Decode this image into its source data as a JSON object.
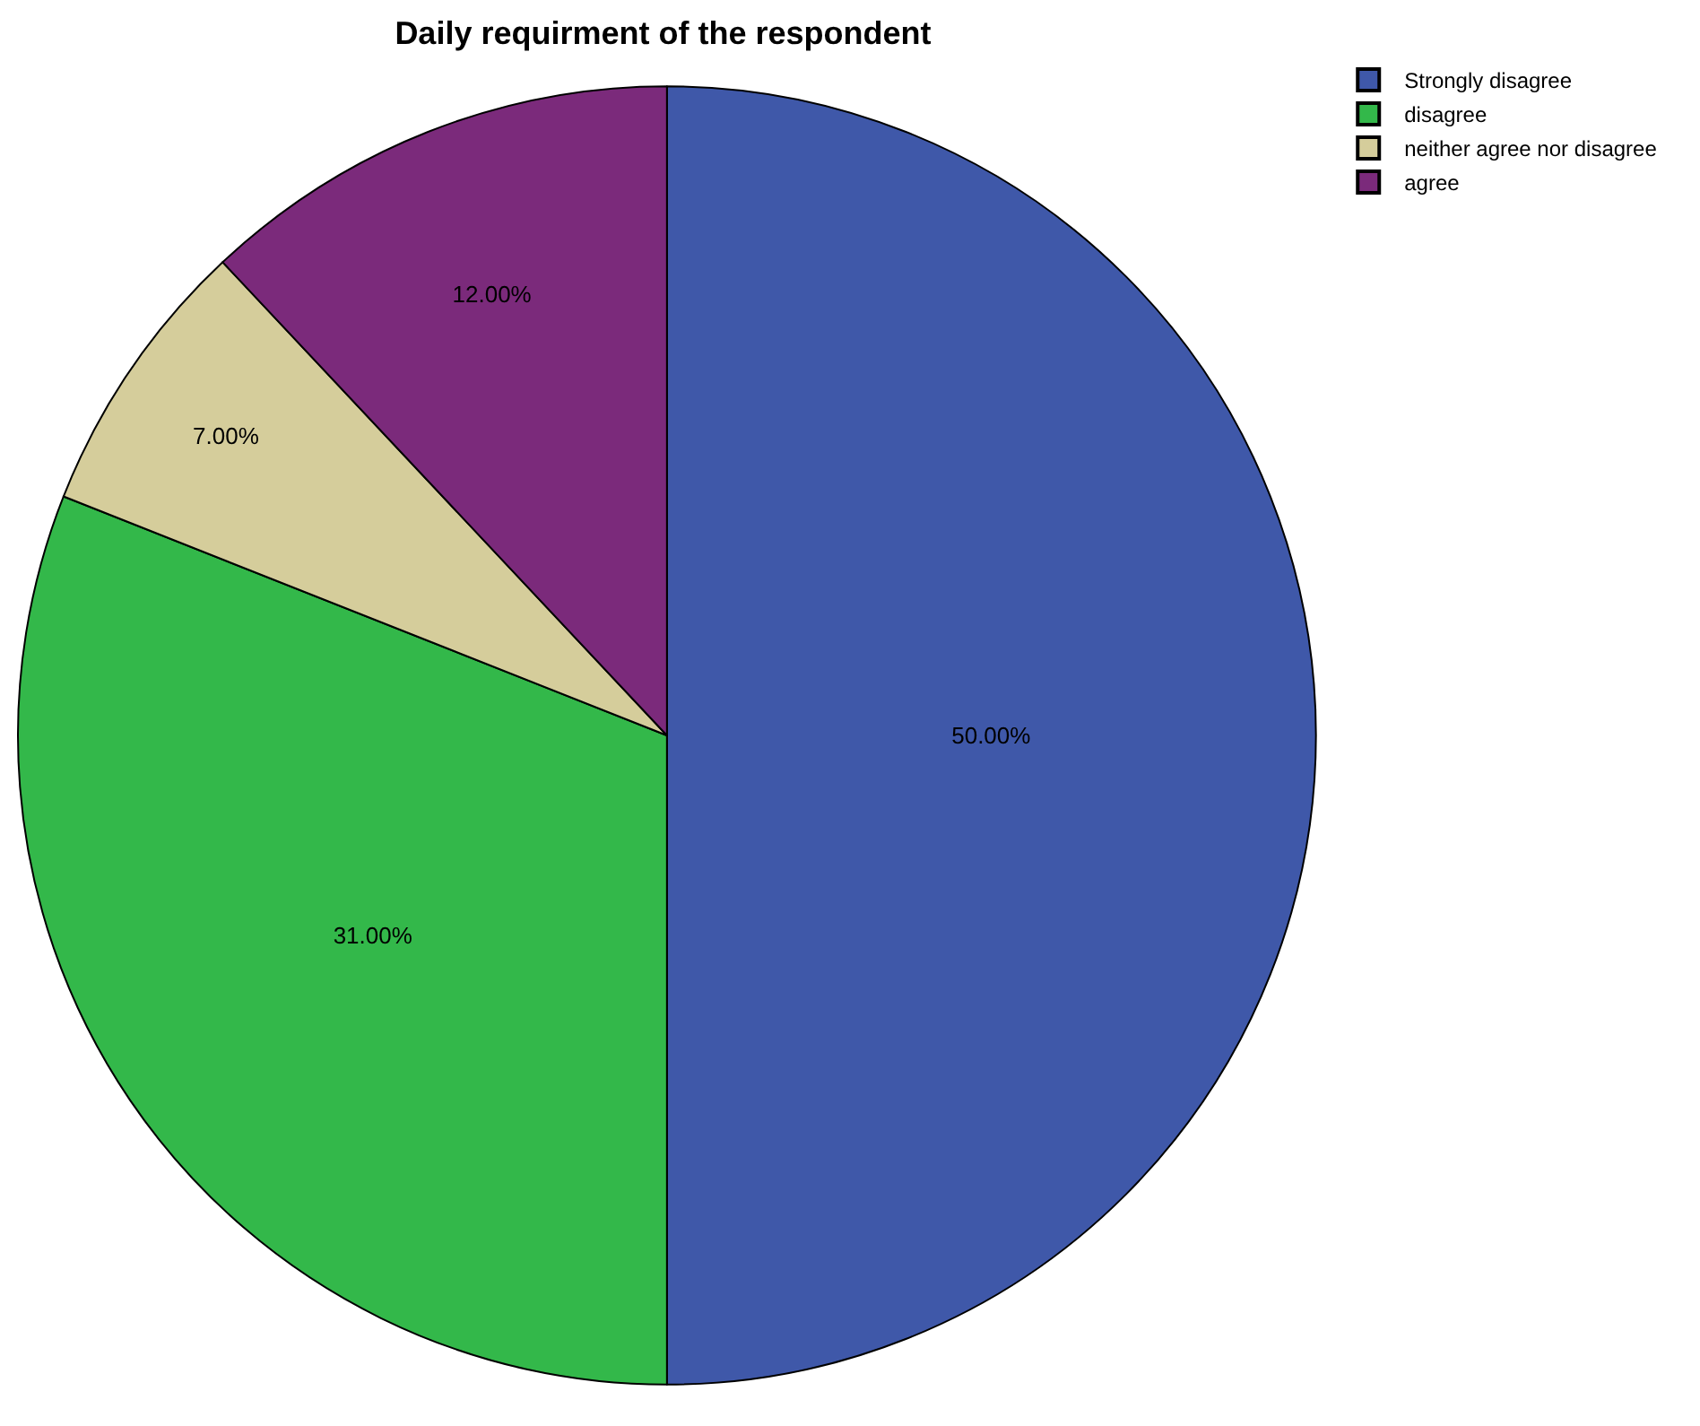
{
  "chart_data": {
    "type": "pie",
    "title": "Daily requirment of the respondent",
    "categories": [
      "Strongly disagree",
      "disagree",
      "neither agree nor disagree",
      "agree"
    ],
    "values": [
      50,
      31,
      7,
      12
    ],
    "colors": [
      "#3f58a9",
      "#33b84a",
      "#d5cd9b",
      "#7b2a7b"
    ],
    "value_labels": [
      "50.00%",
      "31.00%",
      "7.00%",
      "12.00%"
    ],
    "legend": "top right"
  }
}
